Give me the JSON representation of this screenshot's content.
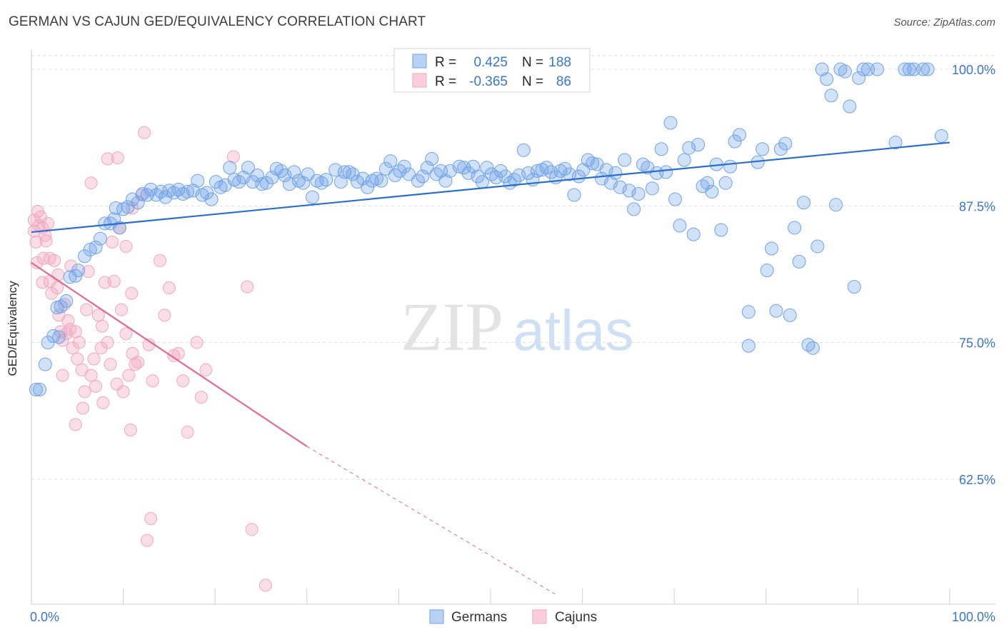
{
  "title": "GERMAN VS CAJUN GED/EQUIVALENCY CORRELATION CHART",
  "source": "Source: ZipAtlas.com",
  "watermark": {
    "zip": "ZIP",
    "atlas": "atlas"
  },
  "colors": {
    "german": "#6fa3e6",
    "german_line": "#2a6fd0",
    "cajun": "#f2a7bf",
    "cajun_line": "#e06a96",
    "tick_label": "#3a76c9",
    "grid": "#dddddd"
  },
  "legend": {
    "german": {
      "r_label": "R =",
      "r_value": "0.425",
      "n_label": "N =",
      "n_value": "188"
    },
    "cajun": {
      "r_label": "R =",
      "r_value": "-0.365",
      "n_label": "N =",
      "n_value": "86"
    }
  },
  "bottom_legend": {
    "german": "Germans",
    "cajun": "Cajuns"
  },
  "chart_data": {
    "type": "scatter",
    "title": "GERMAN VS CAJUN GED/EQUIVALENCY CORRELATION CHART",
    "xlabel": "",
    "ylabel": "GED/Equivalency",
    "xlim": [
      0,
      100
    ],
    "ylim": [
      52,
      102
    ],
    "x_tick_labels": [
      "0.0%",
      "100.0%"
    ],
    "y_ticks": [
      62.5,
      75.0,
      87.5,
      100.0
    ],
    "y_tick_labels": [
      "62.5%",
      "75.0%",
      "87.5%",
      "100.0%"
    ],
    "grid": true,
    "legend_position": "top-center",
    "series": [
      {
        "name": "Germans",
        "r": 0.425,
        "n": 188,
        "trend": {
          "x0": 0,
          "y0": 85.1,
          "x1": 100,
          "y1": 93.3
        },
        "points": [
          [
            0.5,
            70.7
          ],
          [
            1.5,
            73.0
          ],
          [
            1.8,
            75.0
          ],
          [
            2.4,
            75.6
          ],
          [
            2.8,
            78.2
          ],
          [
            3.2,
            78.3
          ],
          [
            3.8,
            78.8
          ],
          [
            4.2,
            81.0
          ],
          [
            4.8,
            81.1
          ],
          [
            5.1,
            81.6
          ],
          [
            5.8,
            82.9
          ],
          [
            6.4,
            83.5
          ],
          [
            7.0,
            83.7
          ],
          [
            7.5,
            84.5
          ],
          [
            8.0,
            85.9
          ],
          [
            8.6,
            85.9
          ],
          [
            9.0,
            86.3
          ],
          [
            9.6,
            85.5
          ],
          [
            10.0,
            87.2
          ],
          [
            10.5,
            87.4
          ],
          [
            11.0,
            88.1
          ],
          [
            11.6,
            87.8
          ],
          [
            12.1,
            88.6
          ],
          [
            12.6,
            88.5
          ],
          [
            13.0,
            89.0
          ],
          [
            13.6,
            88.5
          ],
          [
            14.1,
            88.8
          ],
          [
            14.6,
            88.3
          ],
          [
            15.0,
            88.9
          ],
          [
            15.5,
            88.7
          ],
          [
            16.0,
            89.0
          ],
          [
            16.5,
            88.6
          ],
          [
            17.0,
            88.8
          ],
          [
            17.6,
            88.9
          ],
          [
            18.1,
            89.8
          ],
          [
            18.6,
            88.5
          ],
          [
            19.1,
            88.7
          ],
          [
            19.6,
            88.1
          ],
          [
            20.1,
            89.7
          ],
          [
            20.6,
            89.2
          ],
          [
            21.1,
            89.4
          ],
          [
            21.6,
            91.0
          ],
          [
            22.1,
            89.9
          ],
          [
            22.6,
            89.7
          ],
          [
            23.1,
            90.1
          ],
          [
            23.6,
            91.0
          ],
          [
            24.1,
            89.7
          ],
          [
            24.6,
            90.3
          ],
          [
            25.1,
            89.5
          ],
          [
            25.6,
            89.6
          ],
          [
            26.2,
            90.1
          ],
          [
            26.7,
            90.9
          ],
          [
            27.2,
            90.7
          ],
          [
            27.6,
            90.3
          ],
          [
            28.1,
            89.5
          ],
          [
            28.6,
            90.6
          ],
          [
            29.1,
            89.8
          ],
          [
            29.6,
            89.6
          ],
          [
            30.1,
            90.4
          ],
          [
            30.6,
            88.3
          ],
          [
            31.1,
            89.8
          ],
          [
            31.6,
            89.6
          ],
          [
            32.1,
            89.9
          ],
          [
            33.1,
            90.8
          ],
          [
            33.7,
            89.7
          ],
          [
            34.1,
            90.6
          ],
          [
            34.6,
            90.6
          ],
          [
            35.0,
            90.4
          ],
          [
            35.5,
            89.7
          ],
          [
            36.1,
            90.0
          ],
          [
            36.6,
            89.2
          ],
          [
            37.1,
            89.8
          ],
          [
            37.6,
            90.0
          ],
          [
            38.1,
            89.8
          ],
          [
            38.6,
            90.9
          ],
          [
            39.1,
            91.6
          ],
          [
            39.6,
            90.3
          ],
          [
            40.1,
            90.7
          ],
          [
            40.6,
            91.1
          ],
          [
            41.1,
            90.4
          ],
          [
            42.1,
            89.8
          ],
          [
            42.6,
            90.2
          ],
          [
            43.1,
            91.0
          ],
          [
            43.6,
            91.8
          ],
          [
            44.1,
            90.4
          ],
          [
            44.6,
            90.7
          ],
          [
            45.1,
            89.8
          ],
          [
            45.6,
            90.7
          ],
          [
            46.6,
            91.1
          ],
          [
            47.1,
            91.0
          ],
          [
            47.6,
            90.5
          ],
          [
            48.1,
            91.1
          ],
          [
            48.6,
            90.2
          ],
          [
            49.1,
            89.7
          ],
          [
            49.6,
            91.0
          ],
          [
            50.1,
            90.4
          ],
          [
            50.6,
            90.1
          ],
          [
            51.1,
            90.7
          ],
          [
            51.6,
            90.2
          ],
          [
            52.1,
            89.6
          ],
          [
            52.6,
            89.9
          ],
          [
            53.1,
            90.3
          ],
          [
            53.6,
            92.6
          ],
          [
            54.1,
            90.5
          ],
          [
            54.6,
            89.9
          ],
          [
            55.1,
            90.7
          ],
          [
            55.6,
            90.8
          ],
          [
            56.1,
            91.0
          ],
          [
            56.6,
            90.6
          ],
          [
            57.1,
            90.1
          ],
          [
            57.6,
            90.7
          ],
          [
            58.1,
            90.9
          ],
          [
            58.6,
            90.4
          ],
          [
            59.1,
            88.5
          ],
          [
            59.6,
            90.2
          ],
          [
            60.1,
            90.8
          ],
          [
            60.6,
            91.7
          ],
          [
            61.1,
            91.4
          ],
          [
            61.6,
            91.3
          ],
          [
            62.1,
            90.0
          ],
          [
            62.6,
            90.8
          ],
          [
            63.1,
            89.6
          ],
          [
            63.6,
            90.5
          ],
          [
            64.1,
            89.2
          ],
          [
            64.6,
            91.7
          ],
          [
            65.1,
            88.9
          ],
          [
            65.6,
            87.2
          ],
          [
            66.1,
            88.6
          ],
          [
            66.6,
            91.3
          ],
          [
            67.1,
            91.0
          ],
          [
            67.6,
            89.1
          ],
          [
            68.1,
            90.5
          ],
          [
            68.6,
            92.7
          ],
          [
            69.1,
            90.6
          ],
          [
            69.6,
            95.1
          ],
          [
            70.1,
            88.1
          ],
          [
            70.6,
            85.7
          ],
          [
            71.1,
            91.7
          ],
          [
            71.6,
            92.8
          ],
          [
            72.1,
            84.9
          ],
          [
            72.6,
            93.1
          ],
          [
            73.1,
            89.3
          ],
          [
            73.6,
            89.6
          ],
          [
            74.1,
            88.8
          ],
          [
            74.6,
            91.3
          ],
          [
            75.1,
            85.3
          ],
          [
            75.6,
            89.6
          ],
          [
            76.1,
            91.1
          ],
          [
            76.6,
            93.4
          ],
          [
            77.1,
            94.0
          ],
          [
            78.1,
            77.8
          ],
          [
            78.1,
            74.7
          ],
          [
            79.1,
            91.5
          ],
          [
            79.6,
            92.7
          ],
          [
            80.1,
            81.6
          ],
          [
            80.6,
            83.6
          ],
          [
            81.1,
            77.9
          ],
          [
            81.6,
            92.7
          ],
          [
            82.1,
            93.2
          ],
          [
            82.6,
            77.5
          ],
          [
            83.1,
            85.5
          ],
          [
            83.6,
            82.4
          ],
          [
            84.1,
            87.8
          ],
          [
            84.6,
            74.8
          ],
          [
            85.1,
            74.5
          ],
          [
            85.6,
            83.8
          ],
          [
            86.1,
            100.0
          ],
          [
            86.6,
            99.1
          ],
          [
            87.1,
            97.6
          ],
          [
            87.6,
            87.6
          ],
          [
            88.1,
            100.0
          ],
          [
            88.6,
            99.8
          ],
          [
            89.1,
            96.6
          ],
          [
            89.6,
            80.1
          ],
          [
            90.1,
            99.2
          ],
          [
            90.6,
            100.0
          ],
          [
            91.1,
            100.0
          ],
          [
            92.1,
            100.0
          ],
          [
            94.1,
            93.3
          ],
          [
            95.1,
            100.0
          ],
          [
            95.6,
            100.0
          ],
          [
            96.1,
            100.0
          ],
          [
            97.1,
            100.0
          ],
          [
            97.6,
            100.0
          ],
          [
            99.1,
            93.9
          ],
          [
            0.9,
            70.7
          ],
          [
            3.0,
            75.5
          ],
          [
            9.2,
            87.3
          ]
        ]
      },
      {
        "name": "Cajuns",
        "r": -0.365,
        "n": 86,
        "trend": {
          "x0": 0,
          "y0": 82.3,
          "x1": 30,
          "y1": 65.5,
          "dash_x1": 57,
          "dash_y1": 52
        },
        "points": [
          [
            0.3,
            86.2
          ],
          [
            0.3,
            85.2
          ],
          [
            0.5,
            84.2
          ],
          [
            0.6,
            82.3
          ],
          [
            0.8,
            85.7
          ],
          [
            1.0,
            86.5
          ],
          [
            1.3,
            82.7
          ],
          [
            1.5,
            84.8
          ],
          [
            1.8,
            85.9
          ],
          [
            2.0,
            80.6
          ],
          [
            2.2,
            79.5
          ],
          [
            2.5,
            82.5
          ],
          [
            2.8,
            80.0
          ],
          [
            3.0,
            77.5
          ],
          [
            3.2,
            76.0
          ],
          [
            3.4,
            75.2
          ],
          [
            3.6,
            78.5
          ],
          [
            3.8,
            75.8
          ],
          [
            4.0,
            77.0
          ],
          [
            4.2,
            76.2
          ],
          [
            4.5,
            74.5
          ],
          [
            4.8,
            76.0
          ],
          [
            5.0,
            73.5
          ],
          [
            5.2,
            75.0
          ],
          [
            5.5,
            72.5
          ],
          [
            5.8,
            70.5
          ],
          [
            6.0,
            78.0
          ],
          [
            6.2,
            81.5
          ],
          [
            6.5,
            72.0
          ],
          [
            6.8,
            73.5
          ],
          [
            7.0,
            71.0
          ],
          [
            7.3,
            77.5
          ],
          [
            7.6,
            74.5
          ],
          [
            7.8,
            69.5
          ],
          [
            8.0,
            80.5
          ],
          [
            8.3,
            75.0
          ],
          [
            8.6,
            73.0
          ],
          [
            8.8,
            84.2
          ],
          [
            9.0,
            80.6
          ],
          [
            9.3,
            71.2
          ],
          [
            9.6,
            85.5
          ],
          [
            9.8,
            78.0
          ],
          [
            10.0,
            70.5
          ],
          [
            10.3,
            83.8
          ],
          [
            10.6,
            72.0
          ],
          [
            10.8,
            67.0
          ],
          [
            11.0,
            74.0
          ],
          [
            11.3,
            73.0
          ],
          [
            11.6,
            73.2
          ],
          [
            12.0,
            88.5
          ],
          [
            12.3,
            94.2
          ],
          [
            12.6,
            56.9
          ],
          [
            13.0,
            58.9
          ],
          [
            14.0,
            82.5
          ],
          [
            15.0,
            80.0
          ],
          [
            15.5,
            73.8
          ],
          [
            16.5,
            71.5
          ],
          [
            17.0,
            66.8
          ],
          [
            18.0,
            75.0
          ],
          [
            19.0,
            72.5
          ],
          [
            22.0,
            92.0
          ],
          [
            23.5,
            80.1
          ],
          [
            24.0,
            57.9
          ],
          [
            25.5,
            52.8
          ],
          [
            9.4,
            91.9
          ],
          [
            11.0,
            87.3
          ],
          [
            10.3,
            75.8
          ],
          [
            1.6,
            84.3
          ],
          [
            1.2,
            80.5
          ],
          [
            2.9,
            81.2
          ],
          [
            3.4,
            72.0
          ],
          [
            4.8,
            67.5
          ],
          [
            5.6,
            69.0
          ],
          [
            2.0,
            82.7
          ],
          [
            1.2,
            85.5
          ],
          [
            0.7,
            87.0
          ],
          [
            6.5,
            89.6
          ],
          [
            8.3,
            91.8
          ],
          [
            12.8,
            74.8
          ],
          [
            13.2,
            71.5
          ],
          [
            7.7,
            76.5
          ],
          [
            4.3,
            82.0
          ],
          [
            10.9,
            79.5
          ],
          [
            14.5,
            77.5
          ],
          [
            16.0,
            74.0
          ],
          [
            18.5,
            70.0
          ]
        ]
      }
    ]
  }
}
